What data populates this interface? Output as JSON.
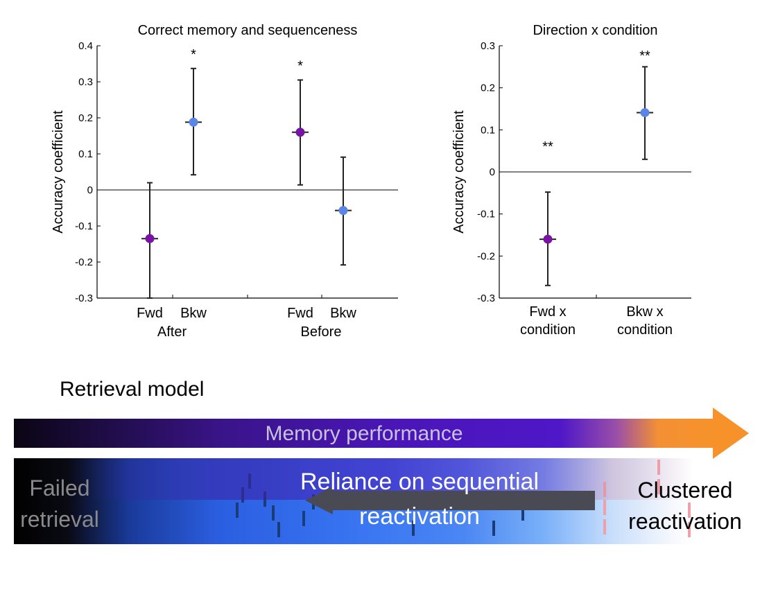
{
  "chart_data": [
    {
      "type": "scatter",
      "title": "Correct memory and sequenceness",
      "ylabel": "Accuracy coefficient",
      "ylim": [
        -0.3,
        0.4
      ],
      "yticks": [
        0.4,
        0.3,
        0.2,
        0.1,
        0,
        -0.1,
        -0.2,
        -0.3
      ],
      "ytick_labels": [
        "0.4",
        "0.3",
        "0.2",
        "0.1",
        "0",
        "-0.1",
        "-0.2",
        "-0.3"
      ],
      "groups": [
        "After",
        "Before"
      ],
      "points": [
        {
          "group": "After",
          "label": "Fwd",
          "y": -0.135,
          "low": -0.3,
          "high": 0.02,
          "color": "#7b12a6",
          "sig": ""
        },
        {
          "group": "After",
          "label": "Bkw",
          "y": 0.188,
          "low": 0.042,
          "high": 0.337,
          "color": "#5b86e8",
          "sig": "*"
        },
        {
          "group": "Before",
          "label": "Fwd",
          "y": 0.16,
          "low": 0.014,
          "high": 0.305,
          "color": "#7b12a6",
          "sig": "*"
        },
        {
          "group": "Before",
          "label": "Bkw",
          "y": -0.057,
          "low": -0.208,
          "high": 0.091,
          "color": "#5b86e8",
          "sig": ""
        }
      ]
    },
    {
      "type": "scatter",
      "title": "Direction x condition",
      "ylabel": "Accuracy coefficient",
      "ylim": [
        -0.3,
        0.3
      ],
      "yticks": [
        0.3,
        0.2,
        0.1,
        0,
        -0.1,
        -0.2,
        -0.3
      ],
      "ytick_labels": [
        "0.3",
        "0.2",
        "0.1",
        "0",
        "-0.1",
        "-0.2",
        "-0.3"
      ],
      "points": [
        {
          "label": [
            "Fwd x",
            "condition"
          ],
          "y": -0.16,
          "low": -0.27,
          "high": -0.048,
          "color": "#7b12a6",
          "sig": "**"
        },
        {
          "label": [
            "Bkw x",
            "condition"
          ],
          "y": 0.141,
          "low": 0.03,
          "high": 0.25,
          "color": "#5b86e8",
          "sig": "**"
        }
      ]
    }
  ],
  "model": {
    "title": "Retrieval model",
    "memory_performance": "Memory performance",
    "failed_line1": "Failed",
    "failed_line2": "retrieval",
    "reliance_line1": "Reliance on sequential",
    "reliance_line2": "reactivation",
    "clustered_line1": "Clustered",
    "clustered_line2": "reactivation",
    "colors": {
      "orange": "#f7922a",
      "purple": "#4e17c8",
      "blue": "#3672f0"
    }
  }
}
